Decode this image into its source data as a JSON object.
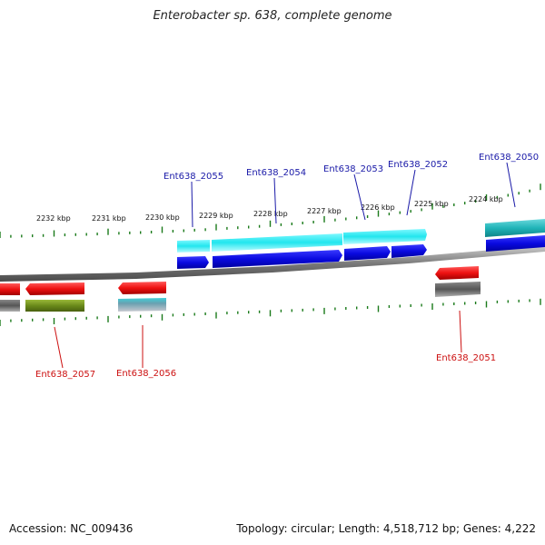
{
  "title": "Enterobacter sp. 638, complete genome",
  "footer": {
    "accession": "Accession: NC_009436",
    "summary": "Topology: circular; Length: 4,518,712 bp; Genes: 4,222"
  },
  "colors": {
    "backbone": "#8a8a8a",
    "tick": "#1a7a1a",
    "forward_label": "#1a1aa8",
    "reverse_label": "#cc1010",
    "cds_forward": "#0a0ae0",
    "gene_forward": "#22e6ee",
    "cds_reverse": "#ee1111",
    "gene_reverse": "#666666",
    "other_reverse": "#6a8a1a",
    "teal_gene": "#20b4b8"
  },
  "ticks": [
    {
      "label": "2232 kbp"
    },
    {
      "label": "2231 kbp"
    },
    {
      "label": "2230 kbp"
    },
    {
      "label": "2229 kbp"
    },
    {
      "label": "2228 kbp"
    },
    {
      "label": "2227 kbp"
    },
    {
      "label": "2226 kbp"
    },
    {
      "label": "2225 kbp"
    },
    {
      "label": "2224 kbp"
    }
  ],
  "genes": {
    "forward": [
      {
        "label": "Ent638_2055"
      },
      {
        "label": "Ent638_2054"
      },
      {
        "label": "Ent638_2053"
      },
      {
        "label": "Ent638_2052"
      },
      {
        "label": "Ent638_2050"
      }
    ],
    "reverse": [
      {
        "label": "Ent638_2057"
      },
      {
        "label": "Ent638_2056"
      },
      {
        "label": "Ent638_2051"
      }
    ]
  }
}
